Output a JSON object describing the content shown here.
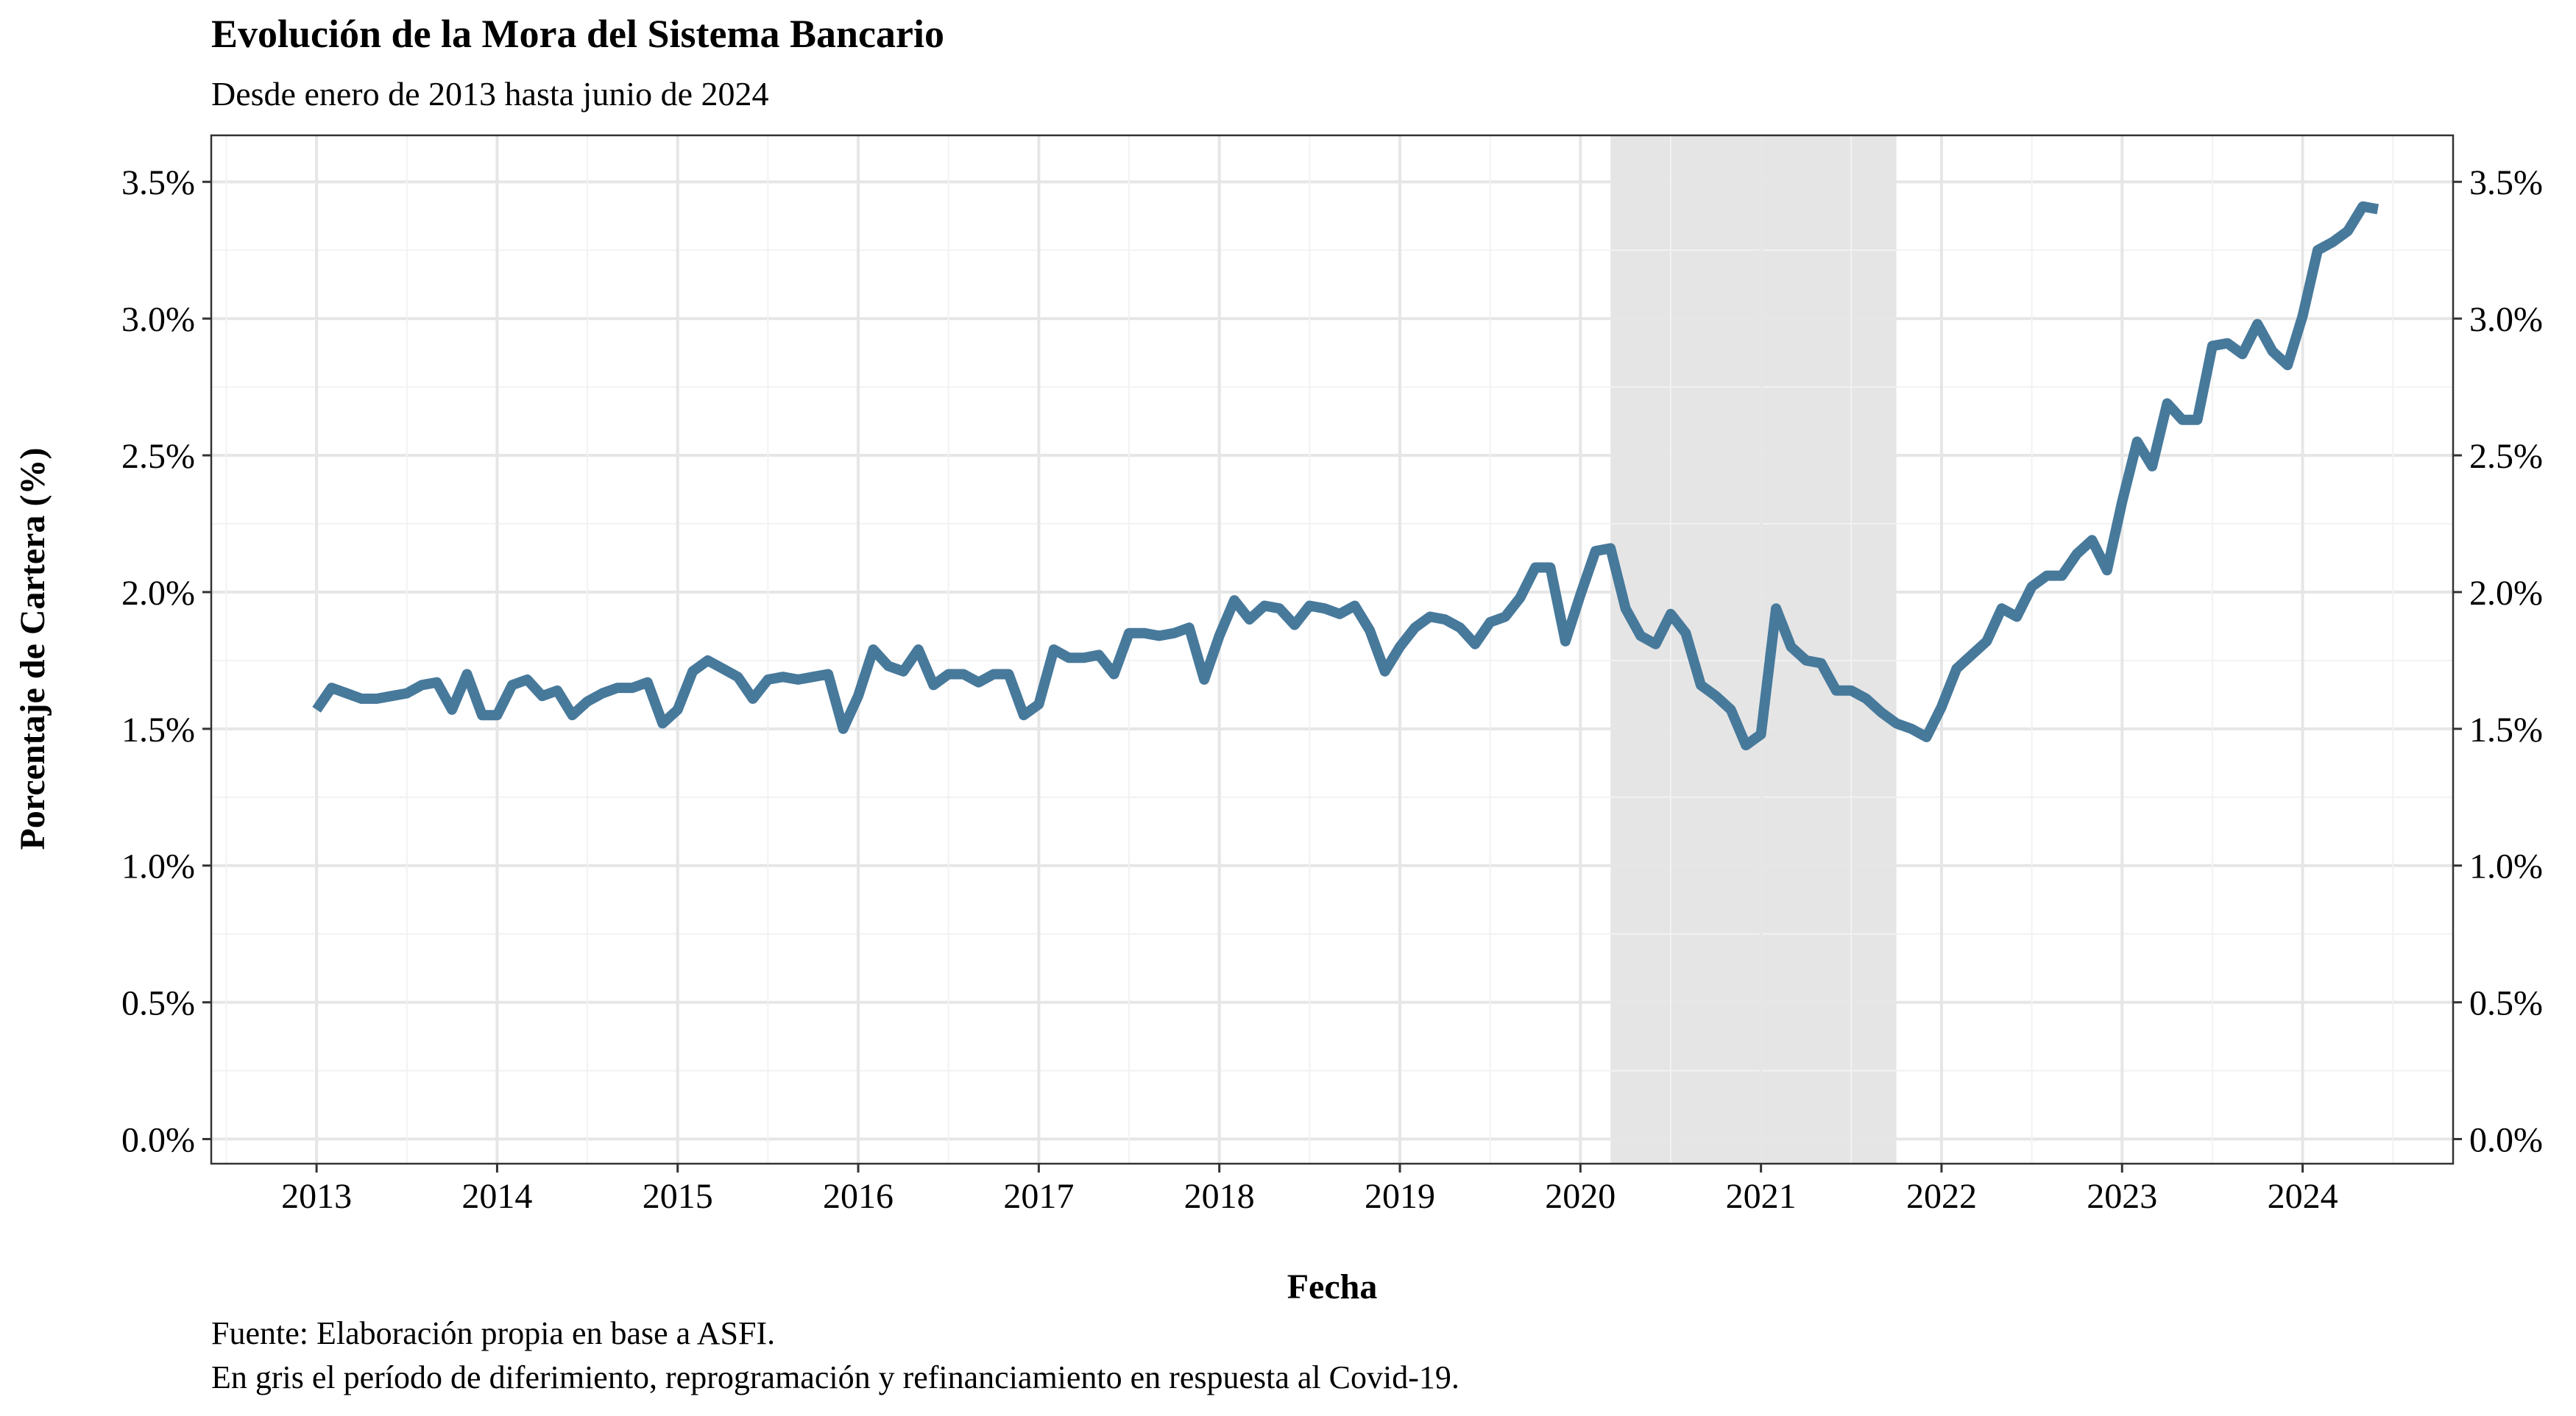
{
  "chart_data": {
    "type": "line",
    "title": "Evolución de la Mora del Sistema Bancario",
    "subtitle": "Desde enero de 2013 hasta junio de 2024",
    "xlabel": "Fecha",
    "ylabel": "Porcentaje de Cartera (%)",
    "caption_lines": [
      "Fuente: Elaboración propia en base a ASFI.",
      "En gris el período de diferimiento, reprogramación y refinanciamiento en respuesta al Covid-19."
    ],
    "x_ticks": [
      "2013",
      "2014",
      "2015",
      "2016",
      "2017",
      "2018",
      "2019",
      "2020",
      "2021",
      "2022",
      "2023",
      "2024"
    ],
    "y_ticks": [
      "0.0%",
      "0.5%",
      "1.0%",
      "1.5%",
      "2.0%",
      "2.5%",
      "3.0%",
      "3.5%"
    ],
    "y_tick_values": [
      0,
      0.5,
      1.0,
      1.5,
      2.0,
      2.5,
      3.0,
      3.5
    ],
    "ylim": [
      -0.09,
      3.67
    ],
    "xlim": [
      "2012-06",
      "2024-11"
    ],
    "shaded_region": {
      "start": "2020-03",
      "end": "2021-10",
      "color": "#e5e5e5"
    },
    "line_color": "#47799b",
    "grid": true,
    "secondary_y_axis": true,
    "series": [
      {
        "x_start": "2013-01",
        "x_step": "1 month",
        "values": [
          1.57,
          1.65,
          1.63,
          1.61,
          1.61,
          1.62,
          1.63,
          1.66,
          1.67,
          1.57,
          1.7,
          1.55,
          1.55,
          1.66,
          1.68,
          1.62,
          1.64,
          1.55,
          1.6,
          1.63,
          1.65,
          1.65,
          1.67,
          1.52,
          1.57,
          1.71,
          1.75,
          1.72,
          1.69,
          1.61,
          1.68,
          1.69,
          1.68,
          1.69,
          1.7,
          1.5,
          1.62,
          1.79,
          1.73,
          1.71,
          1.79,
          1.66,
          1.7,
          1.7,
          1.67,
          1.7,
          1.7,
          1.55,
          1.59,
          1.79,
          1.76,
          1.76,
          1.77,
          1.7,
          1.85,
          1.85,
          1.84,
          1.85,
          1.87,
          1.68,
          1.84,
          1.97,
          1.9,
          1.95,
          1.94,
          1.88,
          1.95,
          1.94,
          1.92,
          1.95,
          1.86,
          1.71,
          1.8,
          1.87,
          1.91,
          1.9,
          1.87,
          1.81,
          1.89,
          1.91,
          1.98,
          2.09,
          2.09,
          1.82,
          1.99,
          2.15,
          2.16,
          1.94,
          1.84,
          1.81,
          1.92,
          1.85,
          1.66,
          1.62,
          1.57,
          1.44,
          1.48,
          1.94,
          1.8,
          1.75,
          1.74,
          1.64,
          1.64,
          1.61,
          1.56,
          1.52,
          1.5,
          1.47,
          1.58,
          1.72,
          1.77,
          1.82,
          1.94,
          1.91,
          2.02,
          2.06,
          2.06,
          2.14,
          2.19,
          2.08,
          2.33,
          2.55,
          2.46,
          2.69,
          2.63,
          2.63,
          2.9,
          2.91,
          2.87,
          2.98,
          2.88,
          2.83,
          3.01,
          3.25,
          3.28,
          3.32,
          3.41,
          3.4
        ]
      }
    ]
  }
}
